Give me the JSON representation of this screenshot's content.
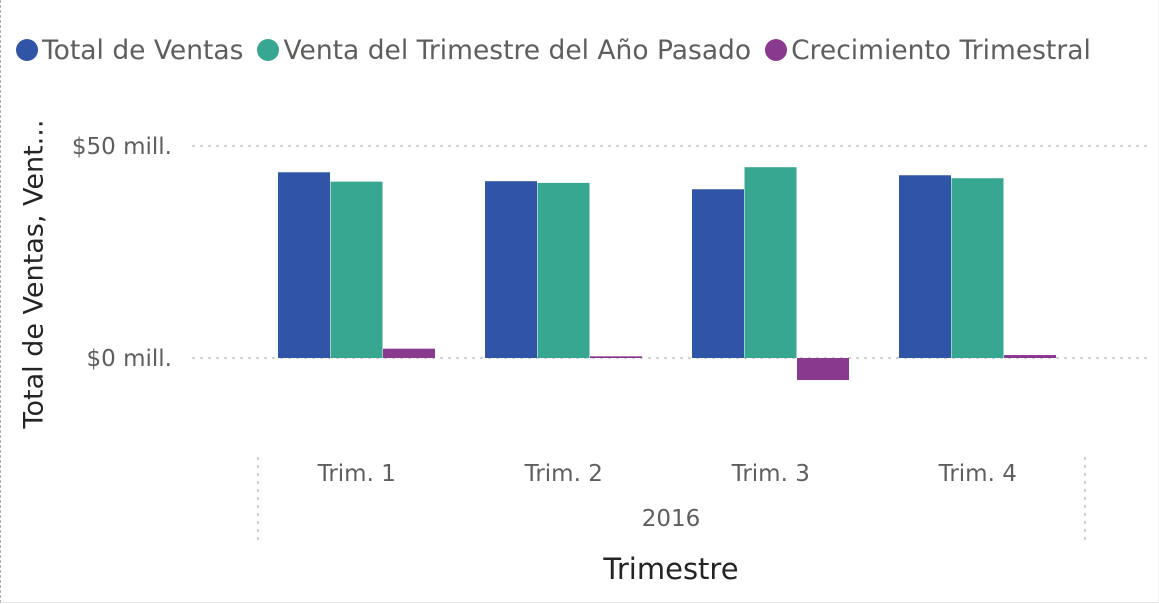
{
  "chart_data": {
    "type": "bar",
    "x_group_label": "2016",
    "categories": [
      "Trim. 1",
      "Trim. 2",
      "Trim. 3",
      "Trim. 4"
    ],
    "series": [
      {
        "name": "Total de Ventas",
        "color": "#3155A6",
        "values": [
          43.8,
          41.7,
          39.8,
          43.1
        ]
      },
      {
        "name": "Venta del Trimestre del Año Pasado",
        "color": "#38A791",
        "values": [
          41.6,
          41.3,
          45.0,
          42.4
        ]
      },
      {
        "name": "Crecimiento Trimestral",
        "color": "#8A3A8E",
        "values": [
          2.2,
          0.4,
          -5.2,
          0.7
        ]
      }
    ],
    "y_ticks": [
      {
        "value": 0,
        "label": "$0 mill."
      },
      {
        "value": 50,
        "label": "$50 mill."
      }
    ],
    "ylabel": "Total de Ventas, Vent...",
    "xlabel": "Trimestre",
    "gridlines": "dotted",
    "legend_position": "top-left"
  }
}
